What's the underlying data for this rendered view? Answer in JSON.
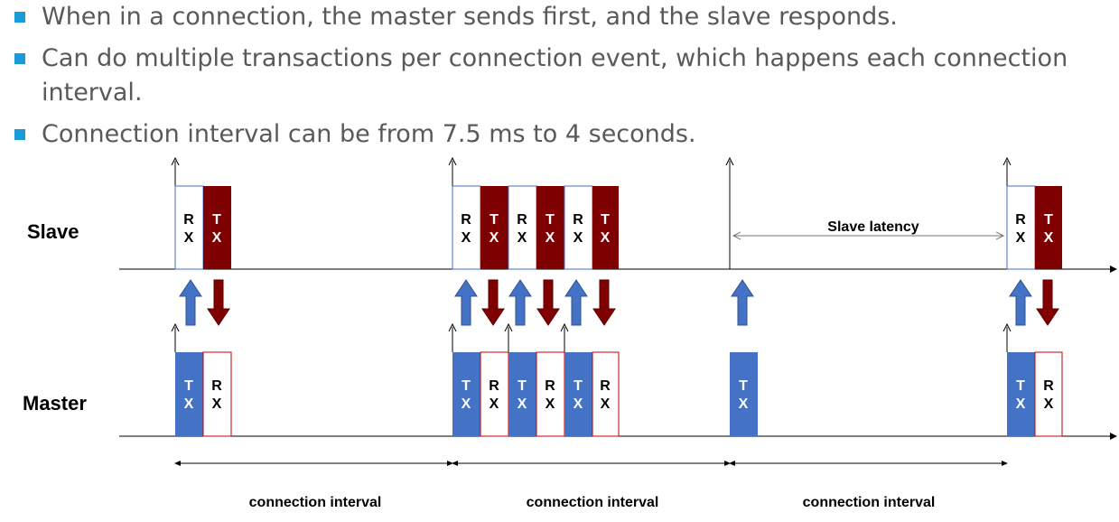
{
  "bullets": [
    "When in a connection, the master sends first, and the slave responds.",
    "Can do multiple transactions per connection event, which happens each connection interval.",
    "Connection interval can be from 7.5 ms to 4 seconds."
  ],
  "diagram": {
    "slave_label": "Slave",
    "master_label": "Master",
    "slave_latency_label": "Slave latency",
    "interval_labels": [
      "connection interval",
      "connection interval",
      "connection interval"
    ],
    "tx_label": "T\nX",
    "rx_label": "R\nX",
    "colors": {
      "slave_tx": "#7f0000",
      "master_tx": "#4472c4",
      "arrow_up": "#4472c4",
      "arrow_down": "#800000",
      "bullet": "#1a9ad6",
      "text": "#595959"
    }
  }
}
